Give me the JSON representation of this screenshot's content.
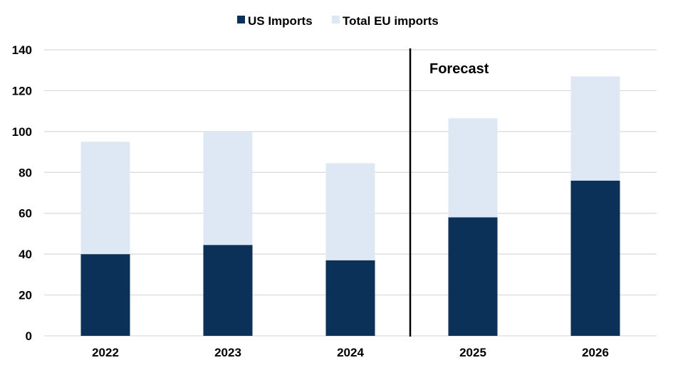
{
  "chart_data": {
    "type": "bar",
    "stacked": true,
    "categories": [
      "2022",
      "2023",
      "2024",
      "2025",
      "2026"
    ],
    "series": [
      {
        "name": "US Imports",
        "values": [
          40,
          44.5,
          37,
          58,
          76
        ],
        "color": "#0c3159"
      },
      {
        "name": "Total EU imports",
        "values": [
          55,
          55.5,
          47.5,
          48.5,
          51
        ],
        "color": "#dde8f4"
      }
    ],
    "ylim": [
      0,
      140
    ],
    "yticks": [
      0,
      20,
      40,
      60,
      80,
      100,
      120,
      140
    ],
    "grid": true,
    "legend_position": "top-center",
    "annotation": {
      "text": "Forecast",
      "after_category": "2024"
    },
    "title": "",
    "xlabel": "",
    "ylabel": ""
  }
}
